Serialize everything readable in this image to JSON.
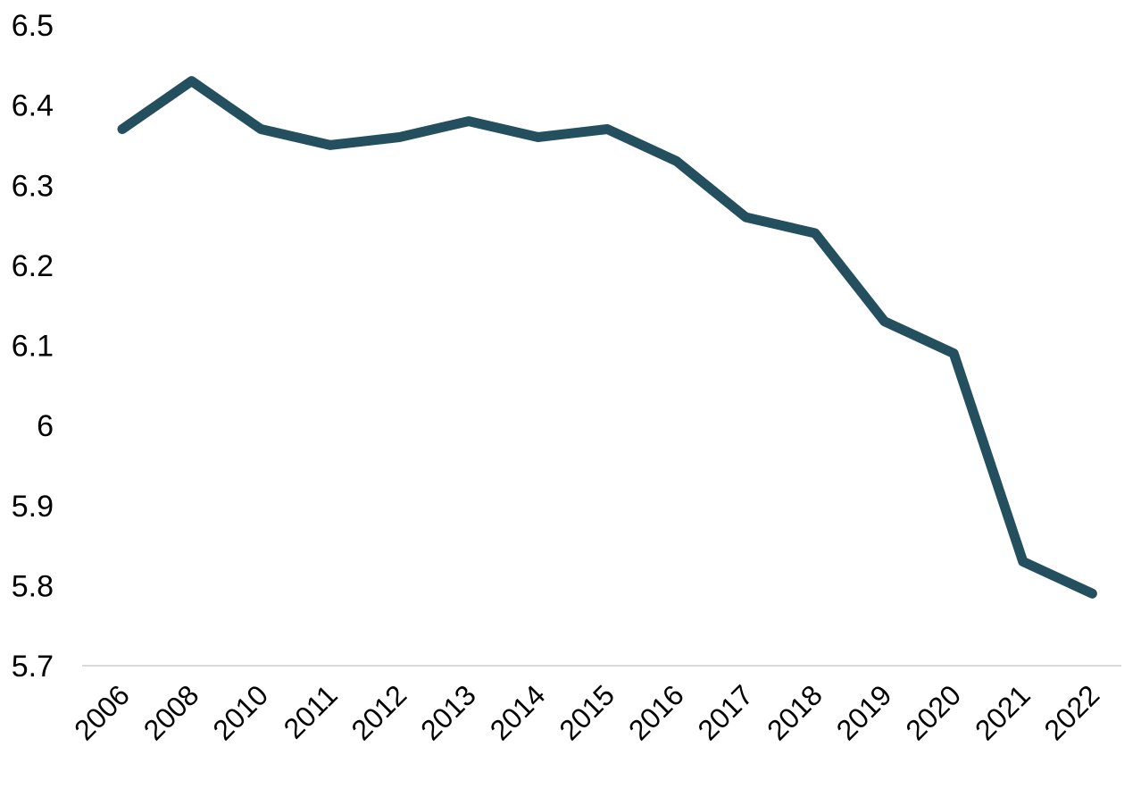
{
  "chart_data": {
    "type": "line",
    "title": "",
    "xlabel": "",
    "ylabel": "",
    "categories": [
      "2006",
      "2008",
      "2010",
      "2011",
      "2012",
      "2013",
      "2014",
      "2015",
      "2016",
      "2017",
      "2018",
      "2019",
      "2020",
      "2021",
      "2022"
    ],
    "series": [
      {
        "values": [
          6.37,
          6.43,
          6.37,
          6.35,
          6.36,
          6.38,
          6.36,
          6.37,
          6.33,
          6.26,
          6.24,
          6.13,
          6.09,
          5.83,
          5.79
        ],
        "color": "#234f5e"
      }
    ],
    "ylim": [
      5.7,
      6.5
    ],
    "yticks": [
      5.7,
      5.8,
      5.9,
      6,
      6.1,
      6.2,
      6.3,
      6.4,
      6.5
    ],
    "ytick_labels": [
      "5.7",
      "5.8",
      "5.9",
      "6",
      "6.1",
      "6.2",
      "6.3",
      "6.4",
      "6.5"
    ],
    "grid": false,
    "legend": "none",
    "axis_color": "#d9d9d9"
  }
}
